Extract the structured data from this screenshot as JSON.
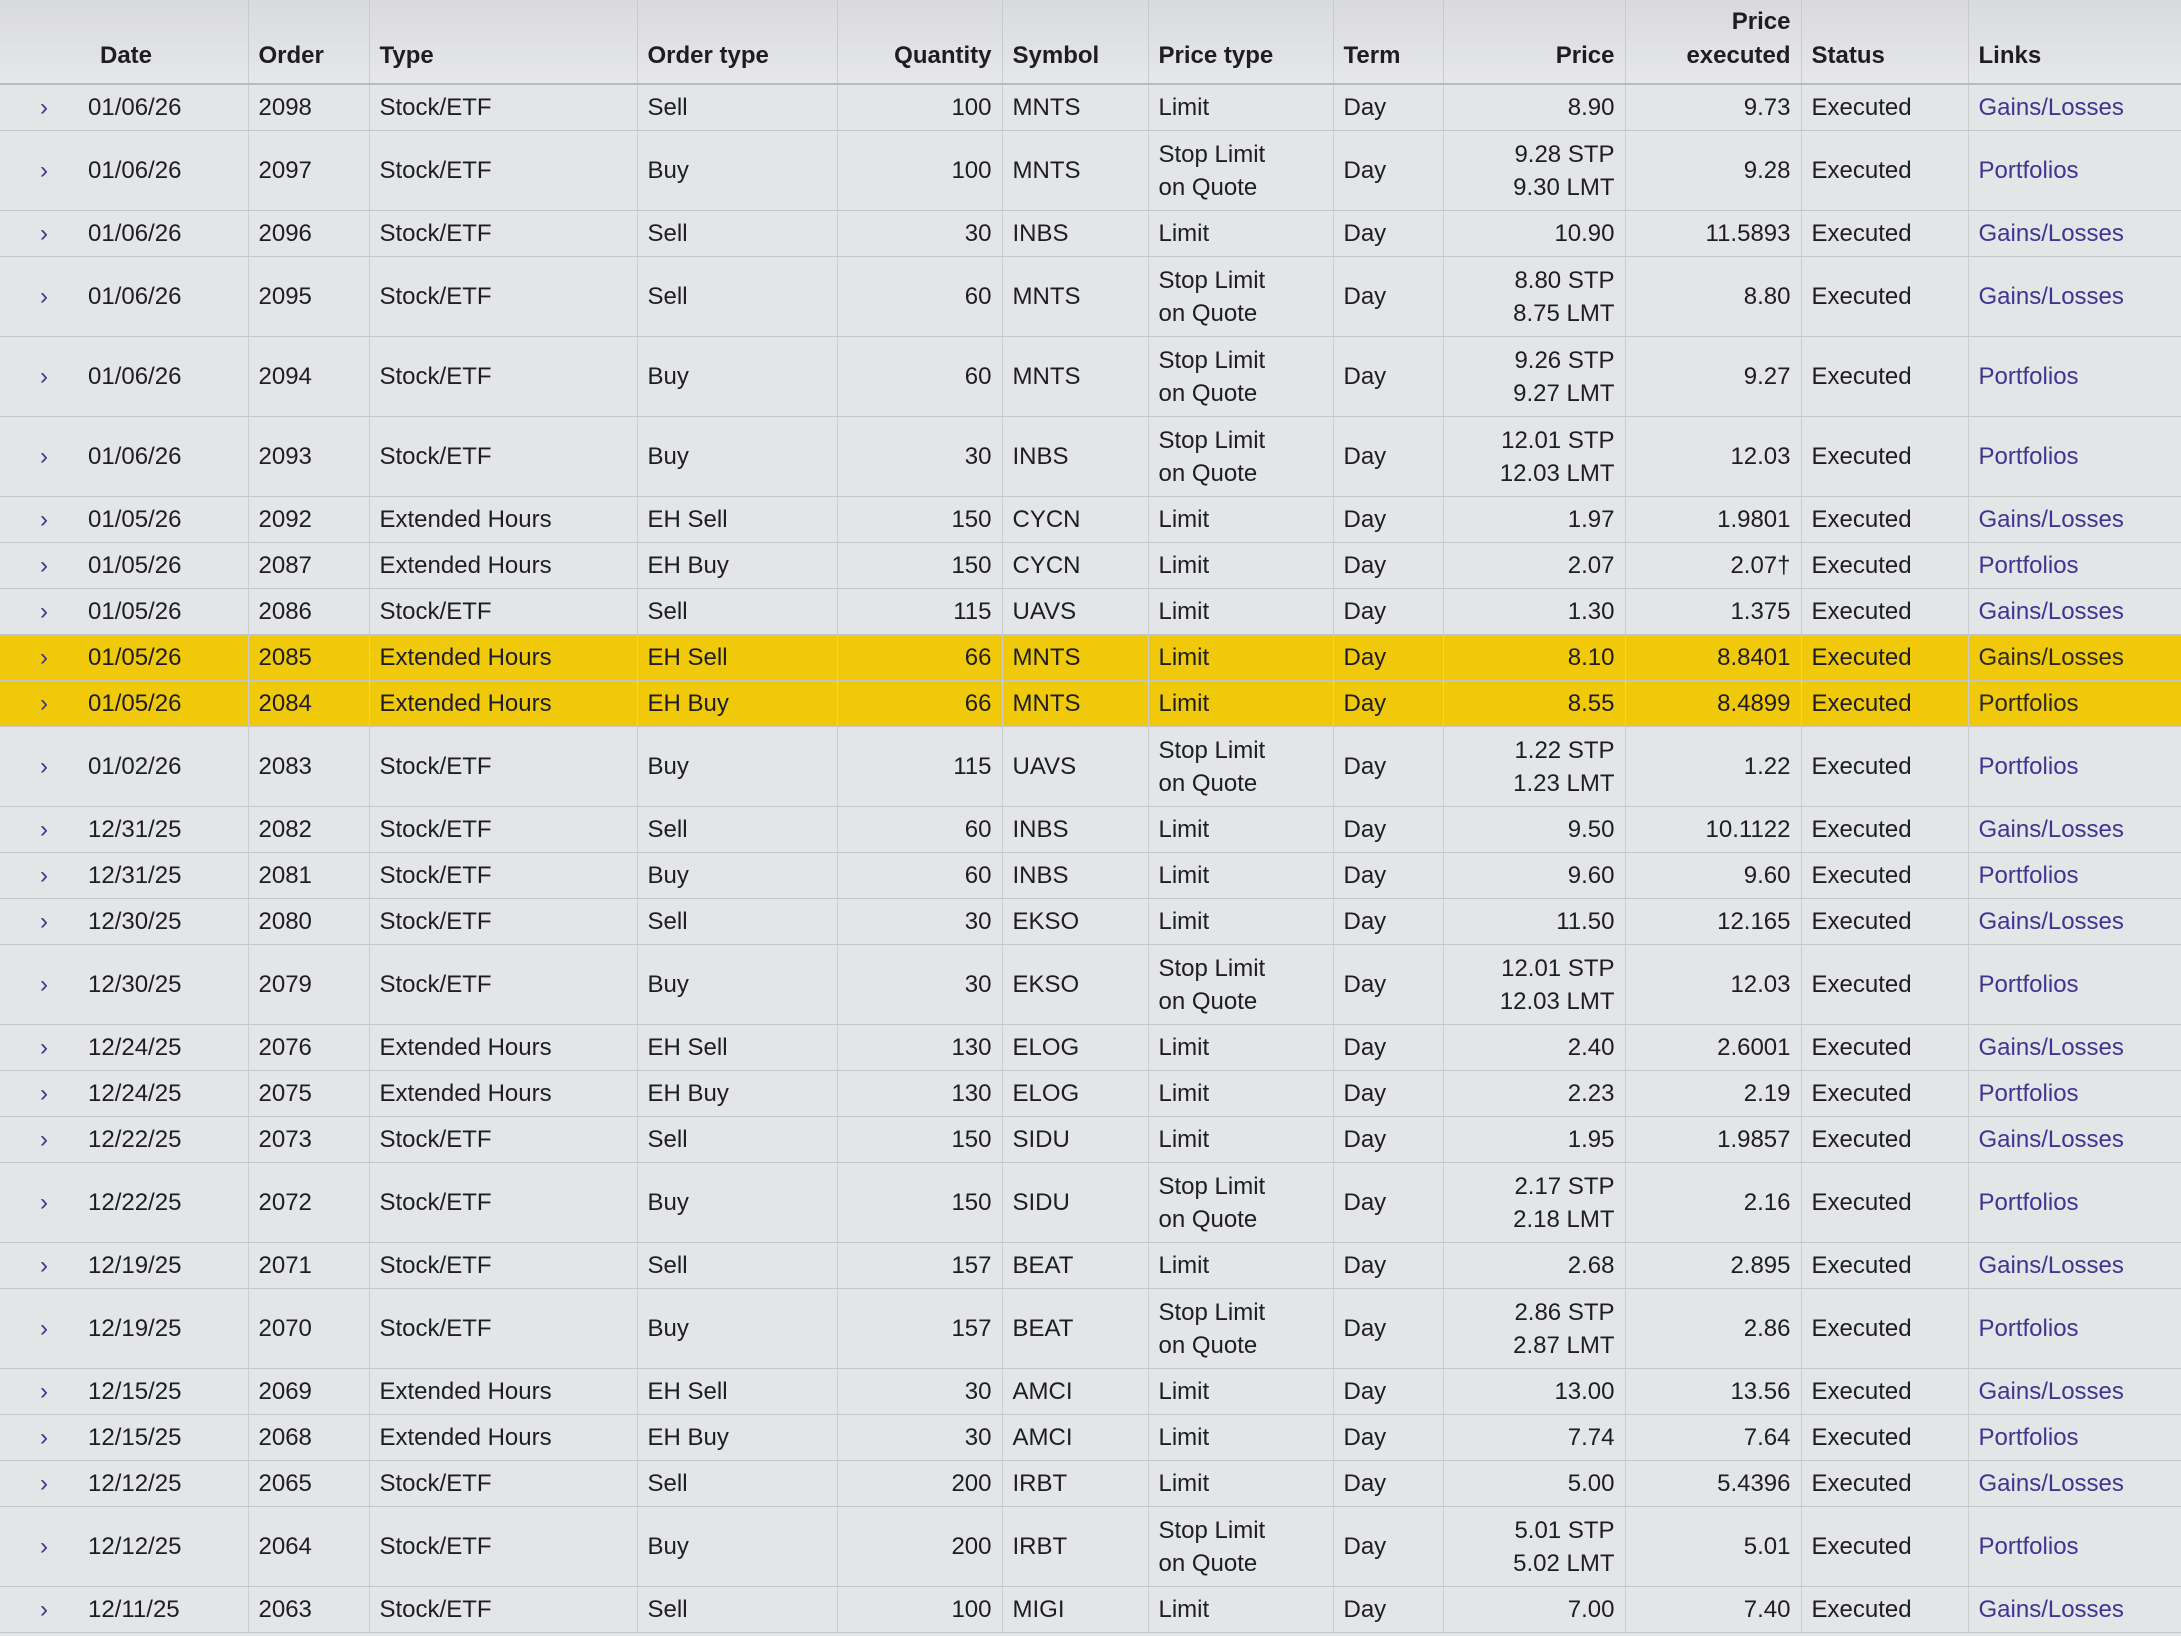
{
  "headers": {
    "date": "Date",
    "order": "Order",
    "type": "Type",
    "order_type": "Order type",
    "quantity": "Quantity",
    "symbol": "Symbol",
    "price_type": "Price type",
    "term": "Term",
    "price": "Price",
    "price_executed": "Price\nexecuted",
    "status": "Status",
    "links": "Links"
  },
  "colors": {
    "highlight": "#f1c90b",
    "link": "#3d3592"
  },
  "rows": [
    {
      "date": "01/06/26",
      "order": "2098",
      "type": "Stock/ETF",
      "order_type": "Sell",
      "quantity": "100",
      "symbol": "MNTS",
      "price_type": "Limit",
      "term": "Day",
      "price": "8.90",
      "price_executed": "9.73",
      "status": "Executed",
      "link": "Gains/Losses",
      "highlighted": false
    },
    {
      "date": "01/06/26",
      "order": "2097",
      "type": "Stock/ETF",
      "order_type": "Buy",
      "quantity": "100",
      "symbol": "MNTS",
      "price_type": "Stop Limit\non Quote",
      "term": "Day",
      "price": "9.28 STP\n9.30 LMT",
      "price_executed": "9.28",
      "status": "Executed",
      "link": "Portfolios",
      "highlighted": false
    },
    {
      "date": "01/06/26",
      "order": "2096",
      "type": "Stock/ETF",
      "order_type": "Sell",
      "quantity": "30",
      "symbol": "INBS",
      "price_type": "Limit",
      "term": "Day",
      "price": "10.90",
      "price_executed": "11.5893",
      "status": "Executed",
      "link": "Gains/Losses",
      "highlighted": false
    },
    {
      "date": "01/06/26",
      "order": "2095",
      "type": "Stock/ETF",
      "order_type": "Sell",
      "quantity": "60",
      "symbol": "MNTS",
      "price_type": "Stop Limit\non Quote",
      "term": "Day",
      "price": "8.80 STP\n8.75 LMT",
      "price_executed": "8.80",
      "status": "Executed",
      "link": "Gains/Losses",
      "highlighted": false
    },
    {
      "date": "01/06/26",
      "order": "2094",
      "type": "Stock/ETF",
      "order_type": "Buy",
      "quantity": "60",
      "symbol": "MNTS",
      "price_type": "Stop Limit\non Quote",
      "term": "Day",
      "price": "9.26 STP\n9.27 LMT",
      "price_executed": "9.27",
      "status": "Executed",
      "link": "Portfolios",
      "highlighted": false
    },
    {
      "date": "01/06/26",
      "order": "2093",
      "type": "Stock/ETF",
      "order_type": "Buy",
      "quantity": "30",
      "symbol": "INBS",
      "price_type": "Stop Limit\non Quote",
      "term": "Day",
      "price": "12.01 STP\n12.03 LMT",
      "price_executed": "12.03",
      "status": "Executed",
      "link": "Portfolios",
      "highlighted": false
    },
    {
      "date": "01/05/26",
      "order": "2092",
      "type": "Extended Hours",
      "order_type": "EH Sell",
      "quantity": "150",
      "symbol": "CYCN",
      "price_type": "Limit",
      "term": "Day",
      "price": "1.97",
      "price_executed": "1.9801",
      "status": "Executed",
      "link": "Gains/Losses",
      "highlighted": false
    },
    {
      "date": "01/05/26",
      "order": "2087",
      "type": "Extended Hours",
      "order_type": "EH Buy",
      "quantity": "150",
      "symbol": "CYCN",
      "price_type": "Limit",
      "term": "Day",
      "price": "2.07",
      "price_executed": "2.07†",
      "status": "Executed",
      "link": "Portfolios",
      "highlighted": false
    },
    {
      "date": "01/05/26",
      "order": "2086",
      "type": "Stock/ETF",
      "order_type": "Sell",
      "quantity": "115",
      "symbol": "UAVS",
      "price_type": "Limit",
      "term": "Day",
      "price": "1.30",
      "price_executed": "1.375",
      "status": "Executed",
      "link": "Gains/Losses",
      "highlighted": false
    },
    {
      "date": "01/05/26",
      "order": "2085",
      "type": "Extended Hours",
      "order_type": "EH Sell",
      "quantity": "66",
      "symbol": "MNTS",
      "price_type": "Limit",
      "term": "Day",
      "price": "8.10",
      "price_executed": "8.8401",
      "status": "Executed",
      "link": "Gains/Losses",
      "highlighted": true
    },
    {
      "date": "01/05/26",
      "order": "2084",
      "type": "Extended Hours",
      "order_type": "EH Buy",
      "quantity": "66",
      "symbol": "MNTS",
      "price_type": "Limit",
      "term": "Day",
      "price": "8.55",
      "price_executed": "8.4899",
      "status": "Executed",
      "link": "Portfolios",
      "highlighted": true
    },
    {
      "date": "01/02/26",
      "order": "2083",
      "type": "Stock/ETF",
      "order_type": "Buy",
      "quantity": "115",
      "symbol": "UAVS",
      "price_type": "Stop Limit\non Quote",
      "term": "Day",
      "price": "1.22 STP\n1.23 LMT",
      "price_executed": "1.22",
      "status": "Executed",
      "link": "Portfolios",
      "highlighted": false
    },
    {
      "date": "12/31/25",
      "order": "2082",
      "type": "Stock/ETF",
      "order_type": "Sell",
      "quantity": "60",
      "symbol": "INBS",
      "price_type": "Limit",
      "term": "Day",
      "price": "9.50",
      "price_executed": "10.1122",
      "status": "Executed",
      "link": "Gains/Losses",
      "highlighted": false
    },
    {
      "date": "12/31/25",
      "order": "2081",
      "type": "Stock/ETF",
      "order_type": "Buy",
      "quantity": "60",
      "symbol": "INBS",
      "price_type": "Limit",
      "term": "Day",
      "price": "9.60",
      "price_executed": "9.60",
      "status": "Executed",
      "link": "Portfolios",
      "highlighted": false
    },
    {
      "date": "12/30/25",
      "order": "2080",
      "type": "Stock/ETF",
      "order_type": "Sell",
      "quantity": "30",
      "symbol": "EKSO",
      "price_type": "Limit",
      "term": "Day",
      "price": "11.50",
      "price_executed": "12.165",
      "status": "Executed",
      "link": "Gains/Losses",
      "highlighted": false
    },
    {
      "date": "12/30/25",
      "order": "2079",
      "type": "Stock/ETF",
      "order_type": "Buy",
      "quantity": "30",
      "symbol": "EKSO",
      "price_type": "Stop Limit\non Quote",
      "term": "Day",
      "price": "12.01 STP\n12.03 LMT",
      "price_executed": "12.03",
      "status": "Executed",
      "link": "Portfolios",
      "highlighted": false
    },
    {
      "date": "12/24/25",
      "order": "2076",
      "type": "Extended Hours",
      "order_type": "EH Sell",
      "quantity": "130",
      "symbol": "ELOG",
      "price_type": "Limit",
      "term": "Day",
      "price": "2.40",
      "price_executed": "2.6001",
      "status": "Executed",
      "link": "Gains/Losses",
      "highlighted": false
    },
    {
      "date": "12/24/25",
      "order": "2075",
      "type": "Extended Hours",
      "order_type": "EH Buy",
      "quantity": "130",
      "symbol": "ELOG",
      "price_type": "Limit",
      "term": "Day",
      "price": "2.23",
      "price_executed": "2.19",
      "status": "Executed",
      "link": "Portfolios",
      "highlighted": false
    },
    {
      "date": "12/22/25",
      "order": "2073",
      "type": "Stock/ETF",
      "order_type": "Sell",
      "quantity": "150",
      "symbol": "SIDU",
      "price_type": "Limit",
      "term": "Day",
      "price": "1.95",
      "price_executed": "1.9857",
      "status": "Executed",
      "link": "Gains/Losses",
      "highlighted": false
    },
    {
      "date": "12/22/25",
      "order": "2072",
      "type": "Stock/ETF",
      "order_type": "Buy",
      "quantity": "150",
      "symbol": "SIDU",
      "price_type": "Stop Limit\non Quote",
      "term": "Day",
      "price": "2.17 STP\n2.18 LMT",
      "price_executed": "2.16",
      "status": "Executed",
      "link": "Portfolios",
      "highlighted": false
    },
    {
      "date": "12/19/25",
      "order": "2071",
      "type": "Stock/ETF",
      "order_type": "Sell",
      "quantity": "157",
      "symbol": "BEAT",
      "price_type": "Limit",
      "term": "Day",
      "price": "2.68",
      "price_executed": "2.895",
      "status": "Executed",
      "link": "Gains/Losses",
      "highlighted": false
    },
    {
      "date": "12/19/25",
      "order": "2070",
      "type": "Stock/ETF",
      "order_type": "Buy",
      "quantity": "157",
      "symbol": "BEAT",
      "price_type": "Stop Limit\non Quote",
      "term": "Day",
      "price": "2.86 STP\n2.87 LMT",
      "price_executed": "2.86",
      "status": "Executed",
      "link": "Portfolios",
      "highlighted": false
    },
    {
      "date": "12/15/25",
      "order": "2069",
      "type": "Extended Hours",
      "order_type": "EH Sell",
      "quantity": "30",
      "symbol": "AMCI",
      "price_type": "Limit",
      "term": "Day",
      "price": "13.00",
      "price_executed": "13.56",
      "status": "Executed",
      "link": "Gains/Losses",
      "highlighted": false
    },
    {
      "date": "12/15/25",
      "order": "2068",
      "type": "Extended Hours",
      "order_type": "EH Buy",
      "quantity": "30",
      "symbol": "AMCI",
      "price_type": "Limit",
      "term": "Day",
      "price": "7.74",
      "price_executed": "7.64",
      "status": "Executed",
      "link": "Portfolios",
      "highlighted": false
    },
    {
      "date": "12/12/25",
      "order": "2065",
      "type": "Stock/ETF",
      "order_type": "Sell",
      "quantity": "200",
      "symbol": "IRBT",
      "price_type": "Limit",
      "term": "Day",
      "price": "5.00",
      "price_executed": "5.4396",
      "status": "Executed",
      "link": "Gains/Losses",
      "highlighted": false
    },
    {
      "date": "12/12/25",
      "order": "2064",
      "type": "Stock/ETF",
      "order_type": "Buy",
      "quantity": "200",
      "symbol": "IRBT",
      "price_type": "Stop Limit\non Quote",
      "term": "Day",
      "price": "5.01 STP\n5.02 LMT",
      "price_executed": "5.01",
      "status": "Executed",
      "link": "Portfolios",
      "highlighted": false
    },
    {
      "date": "12/11/25",
      "order": "2063",
      "type": "Stock/ETF",
      "order_type": "Sell",
      "quantity": "100",
      "symbol": "MIGI",
      "price_type": "Limit",
      "term": "Day",
      "price": "7.00",
      "price_executed": "7.40",
      "status": "Executed",
      "link": "Gains/Losses",
      "highlighted": false
    }
  ]
}
